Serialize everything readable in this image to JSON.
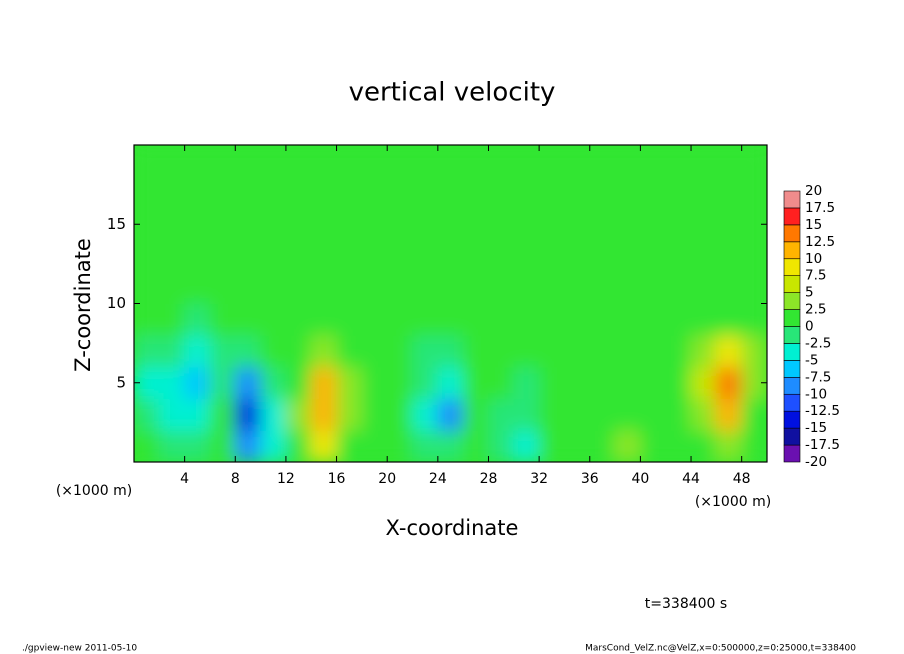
{
  "chart_data": {
    "type": "heatmap",
    "title": "vertical velocity",
    "xlabel": "X-coordinate",
    "ylabel": "Z-coordinate",
    "x_unit": "(×1000 m)",
    "annotation": "t=338400 s",
    "footer_left": "./gpview-new   2011-05-10",
    "footer_right": "MarsCond_VelZ.nc@VelZ,x=0:500000,z=0:25000,t=338400",
    "x": [
      1,
      3,
      5,
      7,
      9,
      11,
      13,
      15,
      17,
      19,
      21,
      23,
      25,
      27,
      29,
      31,
      33,
      35,
      37,
      39,
      41,
      43,
      45,
      47,
      49
    ],
    "y": [
      1,
      3,
      5,
      7,
      9,
      11,
      13,
      15,
      17,
      19
    ],
    "values": [
      [
        0,
        -2,
        -2,
        1,
        -8,
        -3,
        2,
        8,
        1,
        0,
        0,
        -2,
        -2,
        1,
        -2,
        -4,
        0,
        1,
        1,
        3,
        2,
        1,
        1,
        3,
        1
      ],
      [
        -2,
        -4,
        -5,
        0,
        -13,
        -4,
        3,
        12,
        3,
        0,
        0,
        -4,
        -9,
        0,
        -1,
        -2,
        0,
        1,
        2,
        2,
        1,
        1,
        4,
        12,
        2
      ],
      [
        -3,
        -4,
        -6,
        -1,
        -8,
        -2,
        2,
        11,
        3,
        0,
        0,
        -2,
        -3,
        0,
        0,
        -1,
        0,
        1,
        1,
        1,
        0,
        1,
        5,
        14,
        3
      ],
      [
        -1,
        -2,
        -3,
        -1,
        -2,
        0,
        1,
        3,
        1,
        0,
        0,
        -1,
        -1,
        0,
        0,
        0,
        0,
        0,
        1,
        0,
        1,
        1,
        3,
        8,
        3
      ],
      [
        0,
        0,
        -1,
        0,
        0,
        0,
        1,
        1,
        0,
        0,
        1,
        0,
        0,
        0,
        0,
        0,
        0,
        1,
        0,
        0,
        1,
        0,
        1,
        2,
        1
      ],
      [
        0,
        0,
        0,
        0,
        0,
        0,
        0,
        1,
        0,
        0,
        0,
        0,
        0,
        0,
        0,
        0,
        0,
        0,
        0,
        0,
        0,
        0,
        0,
        1,
        0
      ],
      [
        0,
        0,
        0,
        0,
        0,
        0,
        0,
        0,
        0,
        0,
        0,
        0,
        0,
        0,
        0,
        0,
        0,
        0,
        0,
        0,
        0,
        0,
        0,
        0,
        0
      ],
      [
        0,
        0,
        0,
        0,
        0,
        0,
        0,
        0,
        0,
        0,
        0,
        0,
        0,
        0,
        0,
        0,
        0,
        0,
        0,
        0,
        0,
        0,
        0,
        0,
        0
      ],
      [
        0,
        0,
        0,
        0,
        0,
        0,
        0,
        0,
        0,
        0,
        0,
        0,
        0,
        0,
        0,
        0,
        0,
        0,
        0,
        0,
        0,
        0,
        0,
        0,
        0
      ],
      [
        0,
        0,
        0,
        0,
        0,
        0,
        0,
        0,
        0,
        0,
        0,
        0,
        0,
        0,
        0,
        0,
        0,
        0,
        0,
        0,
        0,
        0,
        0,
        0,
        0
      ]
    ],
    "xlim": [
      0,
      50
    ],
    "xticks": [
      4,
      8,
      12,
      16,
      20,
      24,
      28,
      32,
      36,
      40,
      44,
      48
    ],
    "ylim": [
      0,
      20
    ],
    "yticks": [
      5,
      10,
      15
    ],
    "levels": [
      -20,
      -17.5,
      -15,
      -12.5,
      -10,
      -7.5,
      -5,
      -2.5,
      0,
      2.5,
      5,
      7.5,
      10,
      12.5,
      15,
      17.5,
      20
    ],
    "colors": [
      "#6a10b0",
      "#1010a0",
      "#0010e0",
      "#1e50ff",
      "#1e8cff",
      "#00c8ff",
      "#00f0d2",
      "#28e678",
      "#32e632",
      "#8ce628",
      "#c8e600",
      "#f0e600",
      "#ffb400",
      "#ff7800",
      "#ff2020",
      "#f08c8c"
    ]
  }
}
